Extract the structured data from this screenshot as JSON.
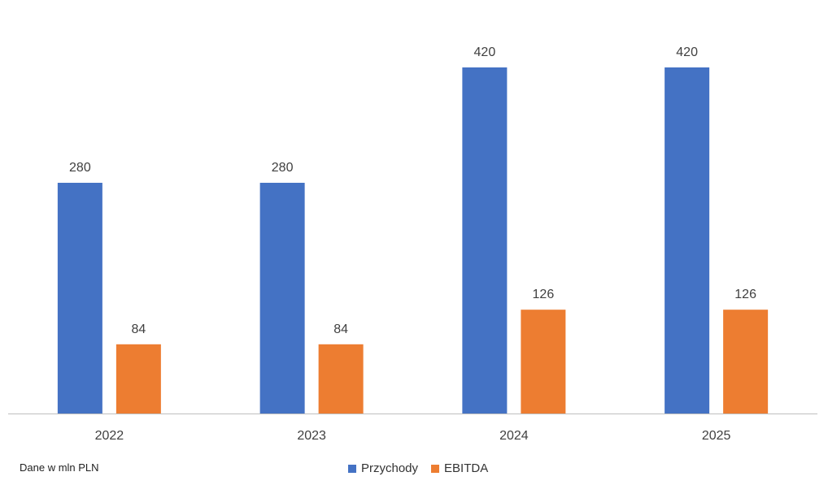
{
  "note": "Dane w mln PLN",
  "colors": {
    "przychody": "#4472C4",
    "ebitda": "#ED7D31",
    "axis": "#BFBFBF",
    "label": "#404040"
  },
  "chart_data": {
    "type": "bar",
    "categories": [
      "2022",
      "2023",
      "2024",
      "2025"
    ],
    "series": [
      {
        "name": "Przychody",
        "values": [
          280,
          280,
          420,
          420
        ]
      },
      {
        "name": "EBITDA",
        "values": [
          84,
          84,
          126,
          126
        ]
      }
    ],
    "ylim": [
      0,
      420
    ],
    "grid": false,
    "legend_position": "bottom",
    "data_labels": true
  }
}
